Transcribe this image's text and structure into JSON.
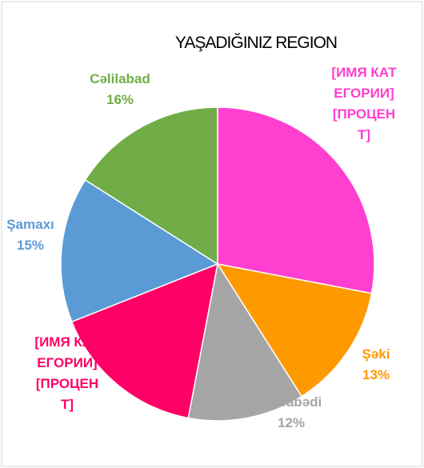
{
  "chart_data": {
    "type": "pie",
    "title": "YAŞADIĞINIZ REGION",
    "categories": [
      "[ИМЯ КАТЕГОРИИ]",
      "Şəki",
      "Ağcabədi",
      "[ИМЯ КАТЕГОРИИ]",
      "Şamaxı",
      "Cəlilabad"
    ],
    "values": [
      28,
      13,
      12,
      16,
      15,
      16
    ],
    "value_labels": [
      "[ПРОЦЕНТ]",
      "13%",
      "12%",
      "[ПРОЦЕНТ]",
      "15%",
      "16%"
    ],
    "colors": [
      "#ff3fcf",
      "#ff9900",
      "#a5a5a5",
      "#ff0066",
      "#5b9bd5",
      "#70ad47"
    ]
  }
}
